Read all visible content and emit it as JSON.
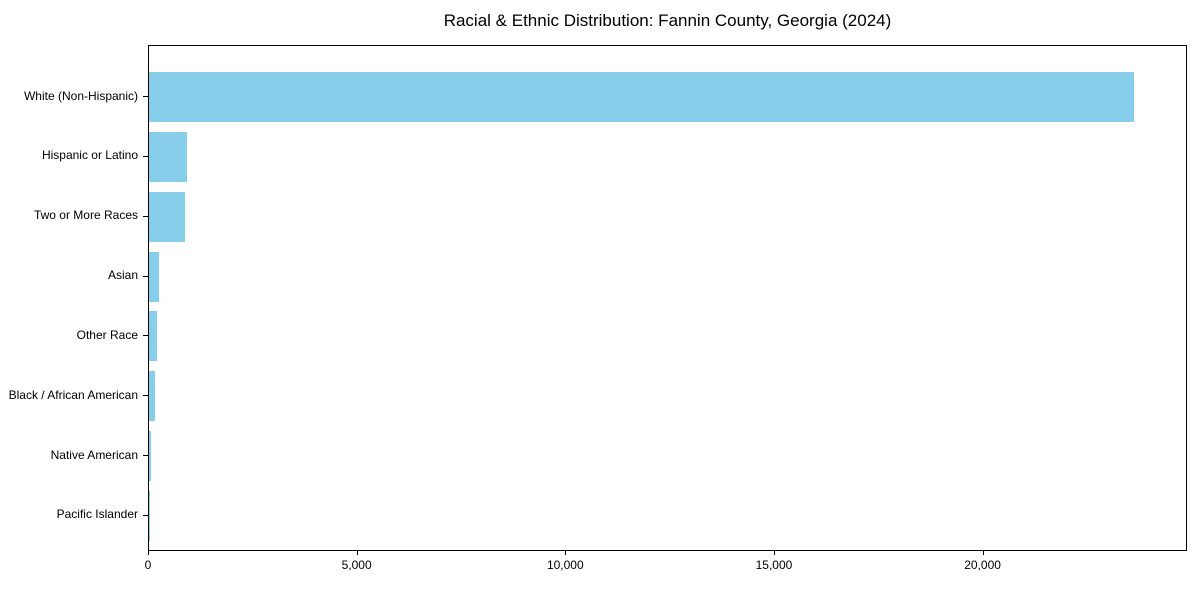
{
  "chart_data": {
    "type": "bar",
    "orientation": "horizontal",
    "title": "Racial & Ethnic Distribution: Fannin County, Georgia (2024)",
    "categories": [
      "White (Non-Hispanic)",
      "Hispanic or Latino",
      "Two or More Races",
      "Asian",
      "Other Race",
      "Black / African American",
      "Native American",
      "Pacific Islander"
    ],
    "values": [
      23600,
      900,
      870,
      240,
      200,
      155,
      40,
      10
    ],
    "bar_color": "#87CEEB",
    "axis_color": "#000000",
    "background_color": "#FFFFFF",
    "xlabel": "",
    "ylabel": "",
    "xlim": [
      0,
      24850
    ],
    "x_ticks": [
      {
        "value": 0,
        "label": "0"
      },
      {
        "value": 5000,
        "label": "5,000"
      },
      {
        "value": 10000,
        "label": "10,000"
      },
      {
        "value": 15000,
        "label": "15,000"
      },
      {
        "value": 20000,
        "label": "20,000"
      }
    ],
    "grid": false,
    "legend_position": "none"
  }
}
